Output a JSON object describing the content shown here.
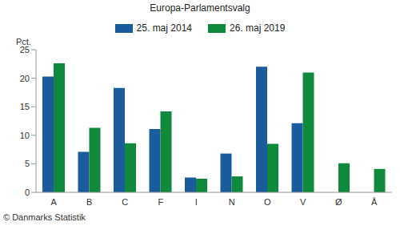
{
  "chart_data": {
    "type": "bar",
    "title": "Europa-Parlamentsvalg",
    "ylabel": "Pct.",
    "annotations": [
      "© Danmarks Statistik"
    ],
    "categories": [
      "A",
      "B",
      "C",
      "F",
      "I",
      "N",
      "O",
      "V",
      "Ø",
      "Å"
    ],
    "series": [
      {
        "name": "25. maj 2014",
        "color": "#1a5c9c",
        "values": [
          20.3,
          7.1,
          18.3,
          11.1,
          2.6,
          6.8,
          22.0,
          12.1,
          null,
          null
        ]
      },
      {
        "name": "26. maj 2019",
        "color": "#0f8a3c",
        "values": [
          22.6,
          11.3,
          8.6,
          14.2,
          2.4,
          2.8,
          8.5,
          21.0,
          5.1,
          4.1
        ]
      }
    ],
    "ylim": [
      0,
      25
    ],
    "yticks": [
      0,
      5,
      10,
      15,
      20,
      25
    ],
    "grid": false,
    "legend": "top"
  }
}
